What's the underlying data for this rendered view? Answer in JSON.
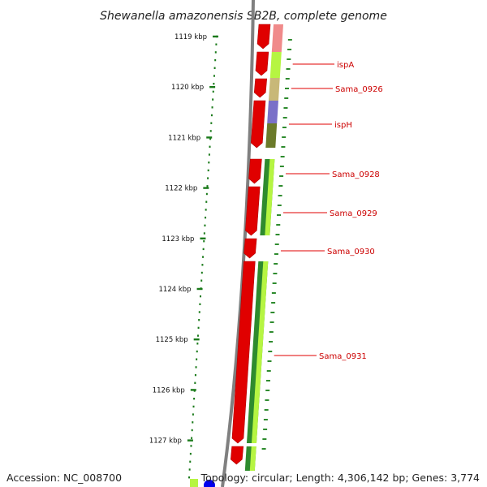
{
  "title": "Shewanella amazonensis SB2B, complete genome",
  "axis": {
    "ticks": [
      {
        "label": "1119 kbp",
        "pos": 1119
      },
      {
        "label": "1120 kbp",
        "pos": 1120
      },
      {
        "label": "1121 kbp",
        "pos": 1121
      },
      {
        "label": "1122 kbp",
        "pos": 1122
      },
      {
        "label": "1123 kbp",
        "pos": 1123
      },
      {
        "label": "1124 kbp",
        "pos": 1124
      },
      {
        "label": "1125 kbp",
        "pos": 1125
      },
      {
        "label": "1126 kbp",
        "pos": 1126
      },
      {
        "label": "1127 kbp",
        "pos": 1127
      }
    ],
    "tick_color": "#1a7a1a"
  },
  "genes": [
    {
      "label": "ispA",
      "color": "#e00000"
    },
    {
      "label": "Sama_0926",
      "color": "#e00000"
    },
    {
      "label": "ispH",
      "color": "#e00000"
    },
    {
      "label": "Sama_0928",
      "color": "#e00000"
    },
    {
      "label": "Sama_0929",
      "color": "#e00000"
    },
    {
      "label": "Sama_0930",
      "color": "#e00000"
    },
    {
      "label": "Sama_0931",
      "color": "#e00000"
    }
  ],
  "colors": {
    "cds_strand": "#e00000",
    "backbone": "#808080",
    "category_green": "#2e8b2e",
    "category_lime": "#b6f542",
    "category_tan": "#c8b878",
    "category_purple": "#7a70c8",
    "category_pink": "#f08a8a",
    "marker_blue": "#0000ee"
  },
  "footer": {
    "accession": "Accession: NC_008700",
    "summary": "Topology: circular; Length: 4,306,142 bp; Genes: 3,774"
  }
}
